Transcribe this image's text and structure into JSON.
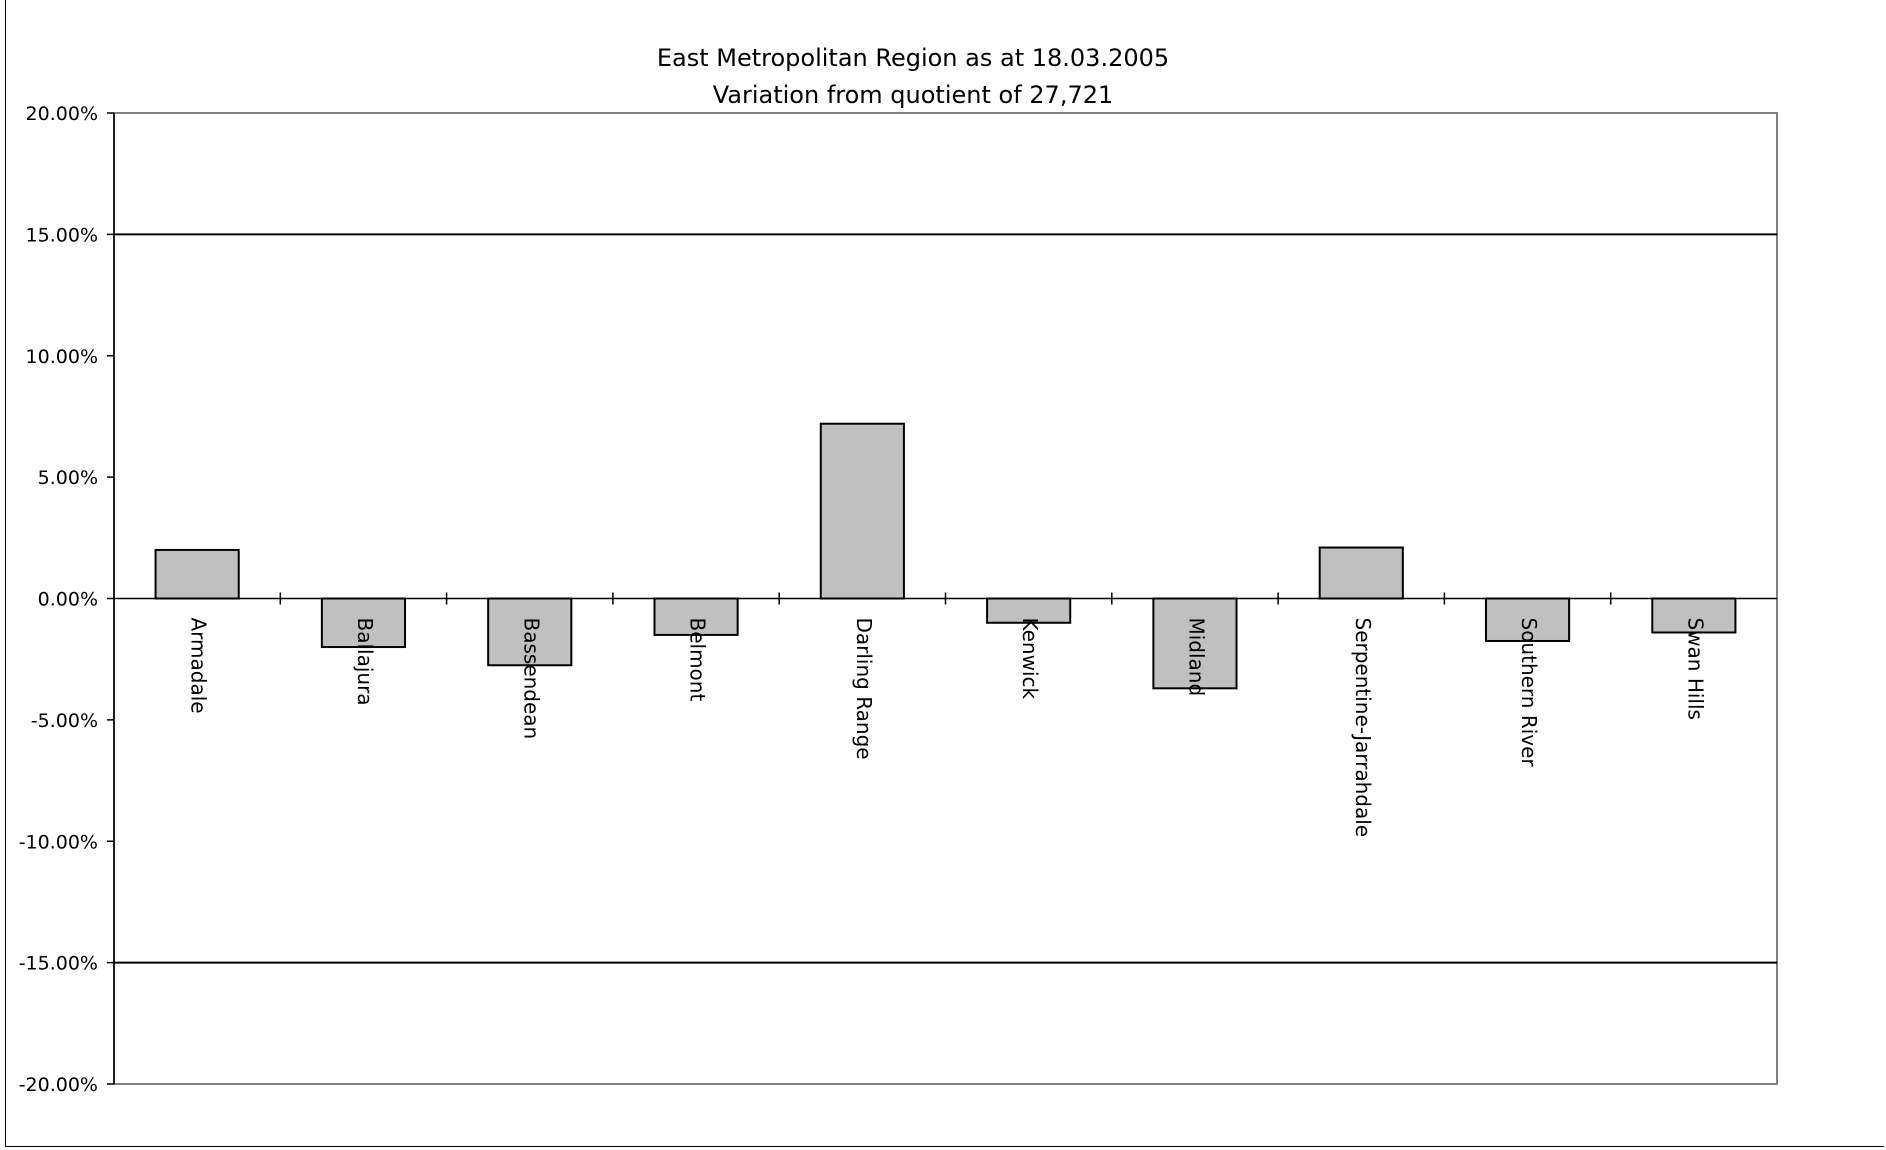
{
  "chart_data": {
    "type": "bar",
    "title_line1": "East Metropolitan Region as at 18.03.2005",
    "title_line2": "Variation from quotient of 27,721",
    "categories": [
      "Armadale",
      "Ballajura",
      "Bassendean",
      "Belmont",
      "Darling Range",
      "Kenwick",
      "Midland",
      "Serpentine-Jarrahdale",
      "Southern River",
      "Swan Hills"
    ],
    "values": [
      2.0,
      -2.0,
      -2.75,
      -1.5,
      7.2,
      -1.0,
      -3.7,
      2.1,
      -1.75,
      -1.4
    ],
    "ylim": [
      -20,
      20
    ],
    "yticks": [
      20,
      15,
      10,
      5,
      0,
      -5,
      -10,
      -15,
      -20
    ],
    "ytick_labels": [
      "20.00%",
      "15.00%",
      "10.00%",
      "5.00%",
      "0.00%",
      "-5.00%",
      "-10.00%",
      "-15.00%",
      "-20.00%"
    ],
    "reference_lines": [
      15,
      -15
    ],
    "bar_color": "#c0c0c0",
    "grid": false
  }
}
